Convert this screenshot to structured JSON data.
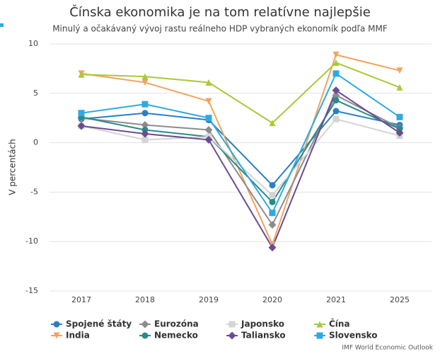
{
  "chart_data": {
    "type": "line",
    "title": "Čínska ekonomika je na tom relatívne najlepšie",
    "subtitle": "Minulý a očakávaný vývoj rastu reálneho HDP vybraných ekonomík podľa MMF",
    "y_label": "V percentách",
    "source": "IMF World Economic Outlook",
    "categories": [
      "2017",
      "2018",
      "2019",
      "2020",
      "2021",
      "2025"
    ],
    "ylim": [
      -15,
      10
    ],
    "yticks": [
      -15,
      -10,
      -5,
      0,
      5,
      10
    ],
    "grid": true,
    "series": [
      {
        "name": "Spojené štáty",
        "color": "#2a7fc4",
        "marker": "circle",
        "values": [
          2.4,
          3.0,
          2.3,
          -4.3,
          3.2,
          1.8
        ]
      },
      {
        "name": "India",
        "color": "#f2a35f",
        "marker": "triangle-down",
        "values": [
          7.0,
          6.1,
          4.2,
          -10.3,
          8.9,
          7.3
        ]
      },
      {
        "name": "Eurozóna",
        "color": "#8c8c8c",
        "marker": "diamond",
        "values": [
          2.5,
          1.8,
          1.3,
          -8.3,
          4.8,
          1.5
        ]
      },
      {
        "name": "Nemecko",
        "color": "#2a8a86",
        "marker": "circle",
        "values": [
          2.6,
          1.3,
          0.6,
          -6.0,
          4.3,
          1.4
        ]
      },
      {
        "name": "Japonsko",
        "color": "#d4d4d4",
        "marker": "square",
        "values": [
          1.7,
          0.3,
          0.6,
          -5.3,
          2.4,
          0.7
        ]
      },
      {
        "name": "Taliansko",
        "color": "#6a4c93",
        "marker": "diamond",
        "values": [
          1.7,
          0.9,
          0.3,
          -10.6,
          5.3,
          1.0
        ]
      },
      {
        "name": "Čína",
        "color": "#a8c93a",
        "marker": "triangle",
        "values": [
          6.9,
          6.7,
          6.1,
          2.0,
          8.1,
          5.6
        ]
      },
      {
        "name": "Slovensko",
        "color": "#2eaae1",
        "marker": "square",
        "values": [
          3.0,
          3.9,
          2.5,
          -7.1,
          7.0,
          2.6
        ]
      }
    ]
  }
}
